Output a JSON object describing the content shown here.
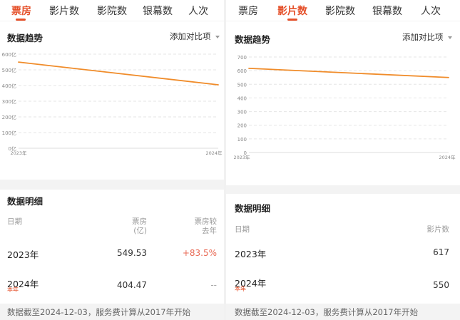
{
  "panels": {
    "left": {
      "tabs": [
        {
          "label": "票房",
          "active": true
        },
        {
          "label": "影片数",
          "active": false
        },
        {
          "label": "影院数",
          "active": false
        },
        {
          "label": "银幕数",
          "active": false
        },
        {
          "label": "人次",
          "active": false
        }
      ],
      "trend_title": "数据趋势",
      "compare_label": "添加对比项",
      "detail_title": "数据明细",
      "columns": {
        "date": "日期",
        "col1": "票房\n(亿)",
        "col2": "票房较\n去年"
      },
      "rows": [
        {
          "year": "2023年",
          "tag": "",
          "col1": "549.53",
          "col2": "+83.5%"
        },
        {
          "year": "2024年",
          "tag": "本年",
          "col1": "404.47",
          "col2": "--"
        }
      ],
      "footer": "数据截至2024-12-03，服务费计算从2017年开始"
    },
    "right": {
      "tabs": [
        {
          "label": "票房",
          "active": false
        },
        {
          "label": "影片数",
          "active": true
        },
        {
          "label": "影院数",
          "active": false
        },
        {
          "label": "银幕数",
          "active": false
        },
        {
          "label": "人次",
          "active": false
        }
      ],
      "trend_title": "数据趋势",
      "compare_label": "添加对比项",
      "detail_title": "数据明细",
      "columns": {
        "date": "日期",
        "col1": "影片数"
      },
      "rows": [
        {
          "year": "2023年",
          "tag": "",
          "col1": "617"
        },
        {
          "year": "2024年",
          "tag": "本年",
          "col1": "550"
        }
      ],
      "footer": "数据截至2024-12-03，服务费计算从2017年开始"
    }
  },
  "chart_data": [
    {
      "type": "line",
      "x": [
        "2023年",
        "2024年"
      ],
      "series": [
        {
          "values": [
            549.53,
            404.47
          ]
        }
      ],
      "yticks": [
        "0亿",
        "100亿",
        "200亿",
        "300亿",
        "400亿",
        "500亿",
        "600亿"
      ],
      "ylim": [
        0,
        600
      ],
      "grid": true,
      "color": "#f08c2a"
    },
    {
      "type": "line",
      "x": [
        "2023年",
        "2024年"
      ],
      "series": [
        {
          "values": [
            617,
            550
          ]
        }
      ],
      "yticks": [
        "0",
        "100",
        "200",
        "300",
        "400",
        "500",
        "600",
        "700"
      ],
      "ylim": [
        0,
        700
      ],
      "grid": true,
      "color": "#f08c2a"
    }
  ]
}
